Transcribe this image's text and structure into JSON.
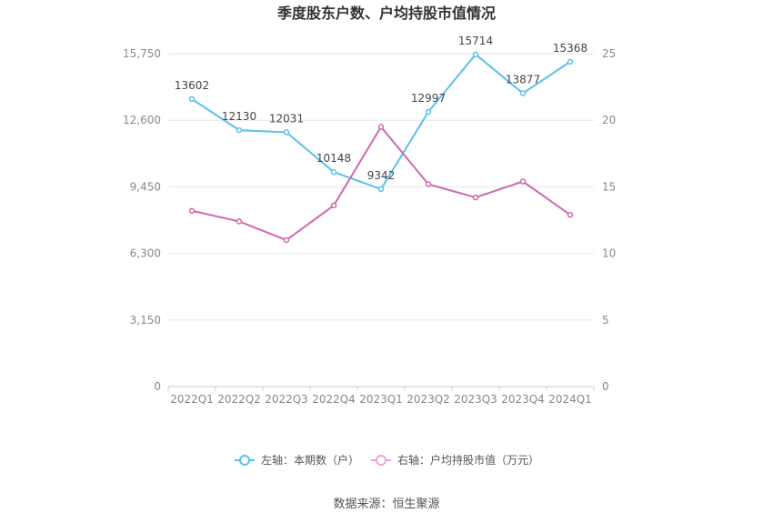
{
  "chart_data": {
    "type": "line",
    "title": "季度股东户数、户均持股市值情况",
    "categories": [
      "2022Q1",
      "2022Q2",
      "2022Q3",
      "2022Q4",
      "2023Q1",
      "2023Q2",
      "2023Q3",
      "2023Q4",
      "2024Q1"
    ],
    "series": [
      {
        "name": "左轴：本期数（户）",
        "axis": "left",
        "color": "#5bc0eb",
        "values": [
          13602,
          12130,
          12031,
          10148,
          9342,
          12997,
          15714,
          13877,
          15368
        ],
        "labels": [
          "13602",
          "12130",
          "12031",
          "10148",
          "9342",
          "12997",
          "15714",
          "13877",
          "15368"
        ]
      },
      {
        "name": "右轴：户均持股市值（万元）",
        "axis": "right",
        "color": "#d068b0",
        "values": [
          13.2,
          12.4,
          11.0,
          13.6,
          19.5,
          15.2,
          14.2,
          15.4,
          12.9
        ]
      }
    ],
    "y_left": {
      "ylim": [
        0,
        15750
      ],
      "ticks": [
        0,
        3150,
        6300,
        9450,
        12600,
        15750
      ],
      "tick_labels": [
        "0",
        "3,150",
        "6,300",
        "9,450",
        "12,600",
        "15,750"
      ]
    },
    "y_right": {
      "ylim": [
        0,
        25
      ],
      "ticks": [
        0,
        5,
        10,
        15,
        20,
        25
      ],
      "tick_labels": [
        "0",
        "5",
        "10",
        "15",
        "20",
        "25"
      ]
    },
    "grid": true,
    "legend": "bottom-center",
    "source": "数据来源：恒生聚源"
  }
}
